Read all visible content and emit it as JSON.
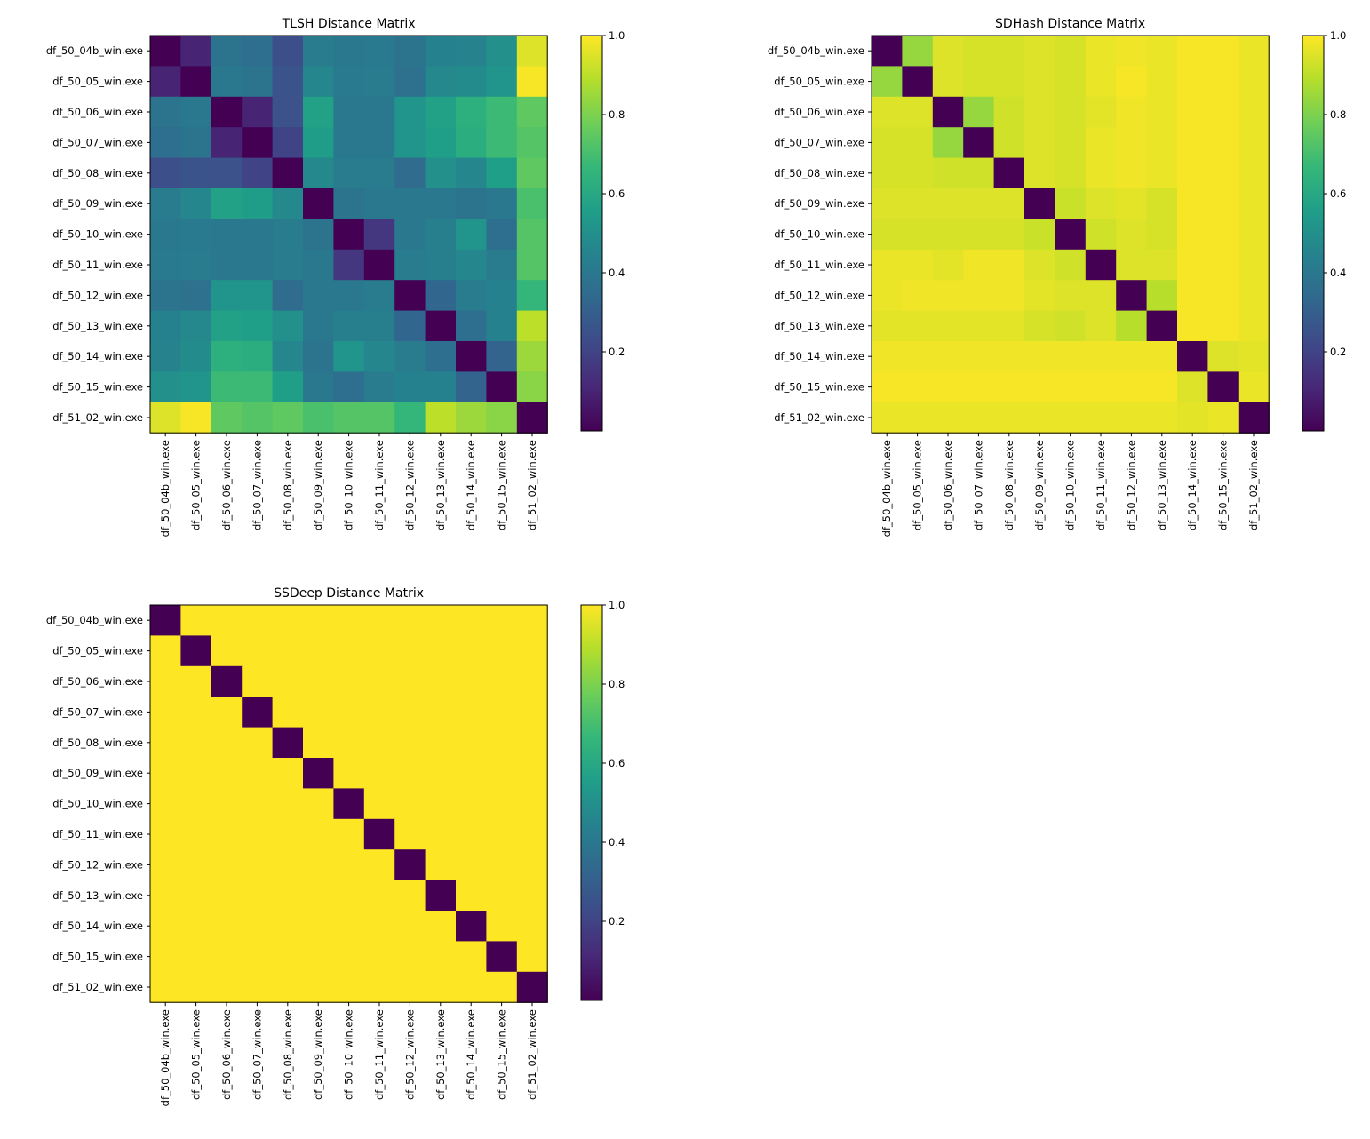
{
  "labels": [
    "df_50_04b_win.exe",
    "df_50_05_win.exe",
    "df_50_06_win.exe",
    "df_50_07_win.exe",
    "df_50_08_win.exe",
    "df_50_09_win.exe",
    "df_50_10_win.exe",
    "df_50_11_win.exe",
    "df_50_12_win.exe",
    "df_50_13_win.exe",
    "df_50_14_win.exe",
    "df_50_15_win.exe",
    "df_51_02_win.exe"
  ],
  "colormap": [
    "#440154",
    "#482878",
    "#3e4a89",
    "#31688e",
    "#26828e",
    "#1f9e89",
    "#35b779",
    "#6ece58",
    "#b5de2b",
    "#fde725"
  ],
  "colorbar_ticks": [
    0.2,
    0.4,
    0.6,
    0.8,
    1.0
  ],
  "colorbar_tick_labels": [
    "0.2",
    "0.4",
    "0.6",
    "0.8",
    "1.0"
  ],
  "chart_data": [
    {
      "type": "heatmap",
      "title": "TLSH Distance Matrix",
      "vmin": 0.0,
      "vmax": 1.0,
      "matrix": [
        [
          0.0,
          0.1,
          0.38,
          0.36,
          0.24,
          0.42,
          0.4,
          0.41,
          0.38,
          0.44,
          0.45,
          0.5,
          0.95
        ],
        [
          0.1,
          0.0,
          0.4,
          0.38,
          0.26,
          0.46,
          0.41,
          0.42,
          0.37,
          0.47,
          0.48,
          0.52,
          0.99
        ],
        [
          0.38,
          0.4,
          0.0,
          0.1,
          0.25,
          0.57,
          0.4,
          0.4,
          0.52,
          0.57,
          0.63,
          0.68,
          0.75
        ],
        [
          0.36,
          0.38,
          0.1,
          0.0,
          0.2,
          0.55,
          0.4,
          0.4,
          0.52,
          0.56,
          0.62,
          0.68,
          0.73
        ],
        [
          0.24,
          0.26,
          0.25,
          0.2,
          0.0,
          0.47,
          0.42,
          0.42,
          0.35,
          0.5,
          0.46,
          0.56,
          0.75
        ],
        [
          0.42,
          0.46,
          0.57,
          0.55,
          0.47,
          0.0,
          0.38,
          0.4,
          0.4,
          0.4,
          0.38,
          0.4,
          0.71
        ],
        [
          0.4,
          0.41,
          0.4,
          0.4,
          0.42,
          0.38,
          0.0,
          0.16,
          0.4,
          0.43,
          0.52,
          0.36,
          0.73
        ],
        [
          0.41,
          0.42,
          0.4,
          0.4,
          0.42,
          0.4,
          0.16,
          0.0,
          0.42,
          0.43,
          0.46,
          0.42,
          0.73
        ],
        [
          0.38,
          0.37,
          0.52,
          0.52,
          0.35,
          0.4,
          0.4,
          0.42,
          0.0,
          0.33,
          0.42,
          0.44,
          0.66
        ],
        [
          0.44,
          0.47,
          0.57,
          0.56,
          0.5,
          0.4,
          0.43,
          0.43,
          0.33,
          0.0,
          0.36,
          0.44,
          0.9
        ],
        [
          0.45,
          0.48,
          0.63,
          0.62,
          0.46,
          0.38,
          0.52,
          0.46,
          0.42,
          0.36,
          0.0,
          0.32,
          0.85
        ],
        [
          0.5,
          0.52,
          0.68,
          0.68,
          0.56,
          0.4,
          0.36,
          0.42,
          0.44,
          0.44,
          0.32,
          0.0,
          0.82
        ],
        [
          0.95,
          0.99,
          0.75,
          0.73,
          0.75,
          0.71,
          0.73,
          0.73,
          0.66,
          0.9,
          0.85,
          0.82,
          0.0
        ]
      ]
    },
    {
      "type": "heatmap",
      "title": "SDHash Distance Matrix",
      "vmin": 0.0,
      "vmax": 1.0,
      "matrix": [
        [
          0.0,
          0.84,
          0.95,
          0.94,
          0.94,
          0.95,
          0.94,
          0.97,
          0.98,
          0.97,
          0.99,
          0.99,
          0.97
        ],
        [
          0.84,
          0.0,
          0.95,
          0.94,
          0.94,
          0.95,
          0.94,
          0.97,
          0.99,
          0.97,
          0.99,
          0.99,
          0.97
        ],
        [
          0.95,
          0.95,
          0.0,
          0.84,
          0.93,
          0.95,
          0.94,
          0.96,
          0.98,
          0.97,
          0.99,
          0.99,
          0.97
        ],
        [
          0.94,
          0.94,
          0.84,
          0.0,
          0.93,
          0.95,
          0.94,
          0.97,
          0.98,
          0.97,
          0.99,
          0.99,
          0.97
        ],
        [
          0.94,
          0.94,
          0.93,
          0.93,
          0.0,
          0.95,
          0.94,
          0.97,
          0.98,
          0.97,
          0.99,
          0.99,
          0.97
        ],
        [
          0.95,
          0.95,
          0.95,
          0.95,
          0.95,
          0.0,
          0.92,
          0.95,
          0.96,
          0.94,
          0.99,
          0.99,
          0.97
        ],
        [
          0.94,
          0.94,
          0.94,
          0.94,
          0.94,
          0.92,
          0.0,
          0.93,
          0.95,
          0.94,
          0.99,
          0.99,
          0.97
        ],
        [
          0.97,
          0.97,
          0.96,
          0.98,
          0.98,
          0.95,
          0.93,
          0.0,
          0.95,
          0.95,
          0.99,
          0.99,
          0.97
        ],
        [
          0.97,
          0.98,
          0.98,
          0.98,
          0.98,
          0.96,
          0.95,
          0.95,
          0.0,
          0.89,
          0.99,
          0.99,
          0.97
        ],
        [
          0.96,
          0.96,
          0.96,
          0.96,
          0.96,
          0.94,
          0.93,
          0.95,
          0.89,
          0.0,
          0.99,
          0.99,
          0.97
        ],
        [
          0.98,
          0.98,
          0.98,
          0.98,
          0.98,
          0.98,
          0.98,
          0.98,
          0.98,
          0.98,
          0.0,
          0.95,
          0.96
        ],
        [
          0.99,
          0.99,
          0.99,
          0.99,
          0.99,
          0.99,
          0.99,
          0.99,
          0.99,
          0.99,
          0.95,
          0.0,
          0.97
        ],
        [
          0.97,
          0.97,
          0.97,
          0.97,
          0.97,
          0.97,
          0.97,
          0.97,
          0.97,
          0.97,
          0.96,
          0.97,
          0.0
        ]
      ]
    },
    {
      "type": "heatmap",
      "title": "SSDeep Distance Matrix",
      "vmin": 0.0,
      "vmax": 1.0,
      "matrix": [
        [
          0,
          1,
          1,
          1,
          1,
          1,
          1,
          1,
          1,
          1,
          1,
          1,
          1
        ],
        [
          1,
          0,
          1,
          1,
          1,
          1,
          1,
          1,
          1,
          1,
          1,
          1,
          1
        ],
        [
          1,
          1,
          0,
          1,
          1,
          1,
          1,
          1,
          1,
          1,
          1,
          1,
          1
        ],
        [
          1,
          1,
          1,
          0,
          1,
          1,
          1,
          1,
          1,
          1,
          1,
          1,
          1
        ],
        [
          1,
          1,
          1,
          1,
          0,
          1,
          1,
          1,
          1,
          1,
          1,
          1,
          1
        ],
        [
          1,
          1,
          1,
          1,
          1,
          0,
          1,
          1,
          1,
          1,
          1,
          1,
          1
        ],
        [
          1,
          1,
          1,
          1,
          1,
          1,
          0,
          1,
          1,
          1,
          1,
          1,
          1
        ],
        [
          1,
          1,
          1,
          1,
          1,
          1,
          1,
          0,
          1,
          1,
          1,
          1,
          1
        ],
        [
          1,
          1,
          1,
          1,
          1,
          1,
          1,
          1,
          0,
          1,
          1,
          1,
          1
        ],
        [
          1,
          1,
          1,
          1,
          1,
          1,
          1,
          1,
          1,
          0,
          1,
          1,
          1
        ],
        [
          1,
          1,
          1,
          1,
          1,
          1,
          1,
          1,
          1,
          1,
          0,
          1,
          1
        ],
        [
          1,
          1,
          1,
          1,
          1,
          1,
          1,
          1,
          1,
          1,
          1,
          0,
          1
        ],
        [
          1,
          1,
          1,
          1,
          1,
          1,
          1,
          1,
          1,
          1,
          1,
          1,
          0
        ]
      ]
    }
  ]
}
